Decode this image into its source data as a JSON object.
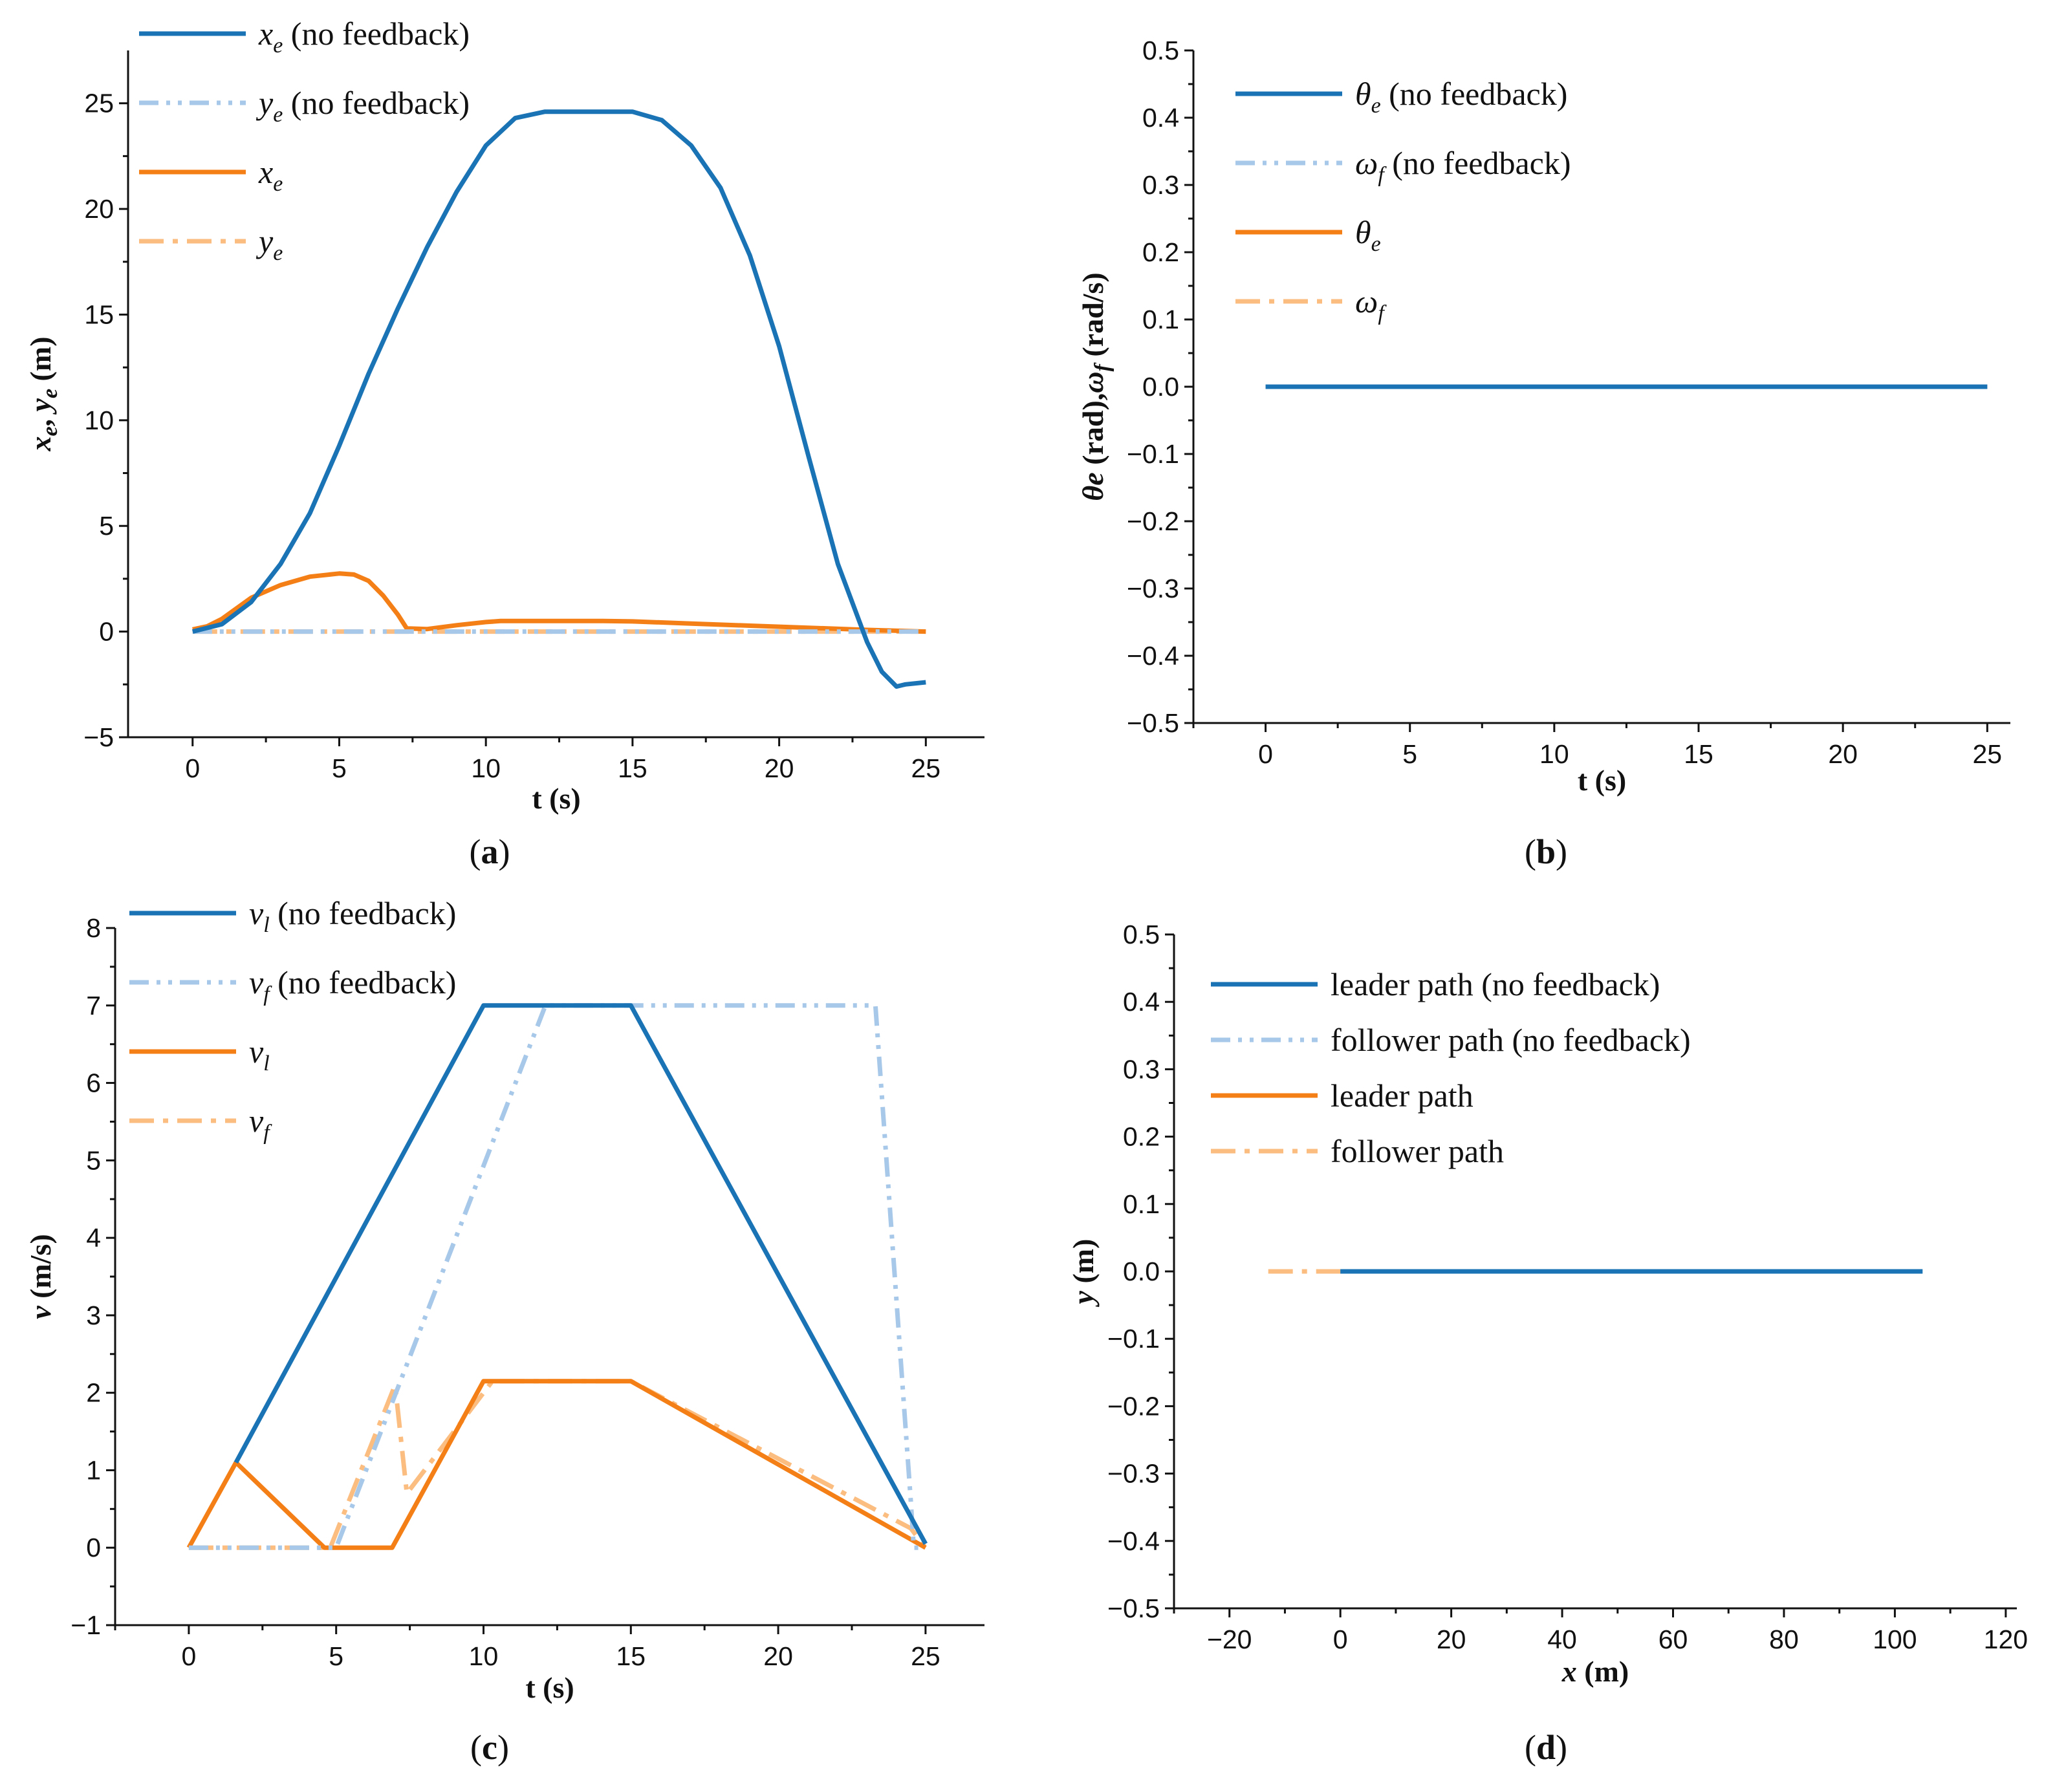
{
  "colors": {
    "dark_blue": "#1a73b4",
    "light_blue": "#a7c8e8",
    "orange": "#f47f17",
    "light_orange": "#fbbd80"
  },
  "chart_data": [
    {
      "id": "a",
      "panel_label": "(a)",
      "type": "line",
      "xlabel": "t (s)",
      "ylabel": "x_e, y_e (m)",
      "xlim": [
        -2.2,
        27
      ],
      "ylim": [
        -5,
        27.5
      ],
      "xticks": [
        0,
        5,
        10,
        15,
        20,
        25
      ],
      "yticks": [
        -5,
        0,
        5,
        10,
        15,
        20,
        25
      ],
      "legend_position": "top-left",
      "series": [
        {
          "name": "x_e (no feedback)",
          "legend_main": "x",
          "legend_sub": "e",
          "legend_rest": " (no feedback)",
          "color": "dark_blue",
          "dash": "solid",
          "x": [
            0,
            1,
            2,
            3,
            4,
            5,
            6,
            7,
            8,
            9,
            10,
            11,
            12,
            13,
            14,
            15,
            16,
            17,
            18,
            19,
            20,
            21,
            22,
            23,
            23.5,
            24,
            24.3,
            25
          ],
          "y": [
            0,
            0.35,
            1.4,
            3.2,
            5.6,
            8.8,
            12.2,
            15.3,
            18.2,
            20.8,
            23.0,
            24.3,
            24.6,
            24.6,
            24.6,
            24.6,
            24.2,
            23.0,
            21.0,
            17.8,
            13.5,
            8.3,
            3.2,
            -0.5,
            -1.9,
            -2.6,
            -2.5,
            -2.4
          ]
        },
        {
          "name": "y_e (no feedback)",
          "legend_main": "y",
          "legend_sub": "e",
          "legend_rest": " (no feedback)",
          "color": "light_blue",
          "dash": "dashdotdot",
          "x": [
            0,
            25
          ],
          "y": [
            0,
            0
          ]
        },
        {
          "name": "x_e",
          "legend_main": "x",
          "legend_sub": "e",
          "legend_rest": "",
          "color": "orange",
          "dash": "solid",
          "x": [
            0,
            0.5,
            1,
            2,
            3,
            4,
            5,
            5.5,
            6,
            6.5,
            7,
            7.3,
            8,
            9,
            10,
            10.5,
            12,
            14,
            15,
            17,
            19,
            21,
            23,
            25
          ],
          "y": [
            0.1,
            0.25,
            0.6,
            1.6,
            2.2,
            2.6,
            2.75,
            2.7,
            2.4,
            1.7,
            0.8,
            0.15,
            0.12,
            0.3,
            0.45,
            0.5,
            0.5,
            0.5,
            0.48,
            0.38,
            0.28,
            0.18,
            0.08,
            0
          ]
        },
        {
          "name": "y_e",
          "legend_main": "y",
          "legend_sub": "e",
          "legend_rest": "",
          "color": "light_orange",
          "dash": "dashdot",
          "x": [
            0,
            25
          ],
          "y": [
            0,
            0
          ]
        }
      ]
    },
    {
      "id": "b",
      "panel_label": "(b)",
      "type": "line",
      "xlabel": "t (s)",
      "ylabel": "θe (rad),ωf (rad/s)",
      "xlim": [
        -2.5,
        25.8
      ],
      "ylim": [
        -0.5,
        0.5
      ],
      "xticks": [
        0,
        5,
        10,
        15,
        20,
        25
      ],
      "yticks": [
        -0.5,
        -0.4,
        -0.3,
        -0.2,
        -0.1,
        0.0,
        0.1,
        0.2,
        0.3,
        0.4,
        0.5
      ],
      "legend_position": "top-left",
      "series": [
        {
          "name": "θ_e (no feedback)",
          "legend_main": "θ",
          "legend_sub": "e",
          "legend_rest": " (no feedback)",
          "color": "dark_blue",
          "dash": "solid",
          "x": [
            0,
            25
          ],
          "y": [
            0,
            0
          ]
        },
        {
          "name": "ω_f (no feedback)",
          "legend_main": "ω",
          "legend_sub": "f",
          "legend_rest": " (no feedback)",
          "color": "light_blue",
          "dash": "dashdotdot",
          "x": [
            0,
            25
          ],
          "y": [
            0,
            0
          ]
        },
        {
          "name": "θ_e",
          "legend_main": "θ",
          "legend_sub": "e",
          "legend_rest": "",
          "color": "orange",
          "dash": "solid",
          "x": [
            0,
            25
          ],
          "y": [
            0,
            0
          ]
        },
        {
          "name": "ω_f",
          "legend_main": "ω",
          "legend_sub": "f",
          "legend_rest": "",
          "color": "light_orange",
          "dash": "dashdot",
          "x": [
            0,
            25
          ],
          "y": [
            0,
            0
          ]
        }
      ]
    },
    {
      "id": "c",
      "panel_label": "(c)",
      "type": "line",
      "xlabel": "t (s)",
      "ylabel": "v (m/s)",
      "xlim": [
        -2.5,
        27
      ],
      "ylim": [
        -1,
        8
      ],
      "xticks": [
        0,
        5,
        10,
        15,
        20,
        25
      ],
      "yticks": [
        -1,
        0,
        1,
        2,
        3,
        4,
        5,
        6,
        7,
        8
      ],
      "legend_position": "top-left",
      "series": [
        {
          "name": "v_l (no feedback)",
          "legend_main": "v",
          "legend_sub": "l",
          "legend_rest": " (no feedback)",
          "color": "dark_blue",
          "dash": "solid",
          "x": [
            1.6,
            10,
            15,
            25
          ],
          "y": [
            1.1,
            7,
            7,
            0.05
          ]
        },
        {
          "name": "v_f (no feedback)",
          "legend_main": "v",
          "legend_sub": "f",
          "legend_rest": " (no feedback)",
          "color": "light_blue",
          "dash": "dashdotdot",
          "x": [
            0,
            5,
            12.1,
            23.3,
            24.5,
            24.6,
            25
          ],
          "y": [
            0,
            0,
            7,
            7,
            0.6,
            0,
            0
          ]
        },
        {
          "name": "v_l",
          "legend_main": "v",
          "legend_sub": "l",
          "legend_rest": "",
          "color": "orange",
          "dash": "solid",
          "x": [
            0,
            1.6,
            4.6,
            6.9,
            10,
            15,
            25
          ],
          "y": [
            0,
            1.1,
            0,
            0,
            2.15,
            2.15,
            0
          ]
        },
        {
          "name": "v_f",
          "legend_main": "v",
          "legend_sub": "f",
          "legend_rest": "",
          "color": "light_orange",
          "dash": "dashdot",
          "x": [
            0,
            4.8,
            7.0,
            7.4,
            10.3,
            15,
            24.5,
            25
          ],
          "y": [
            0,
            0,
            2.1,
            0.7,
            2.15,
            2.15,
            0.25,
            0
          ]
        }
      ]
    },
    {
      "id": "d",
      "panel_label": "(d)",
      "type": "line",
      "xlabel": "x (m)",
      "ylabel": "y (m)",
      "xlim": [
        -30,
        122
      ],
      "ylim": [
        -0.5,
        0.5
      ],
      "xticks": [
        -20,
        0,
        20,
        40,
        60,
        80,
        100,
        120
      ],
      "yticks": [
        -0.5,
        -0.4,
        -0.3,
        -0.2,
        -0.1,
        0.0,
        0.1,
        0.2,
        0.3,
        0.4,
        0.5
      ],
      "legend_position": "top-left",
      "series": [
        {
          "name": "leader path (no feedback)",
          "legend_main": "leader path (no feedback)",
          "legend_sub": "",
          "legend_rest": "",
          "color": "dark_blue",
          "dash": "solid",
          "x": [
            0,
            105
          ],
          "y": [
            0,
            0
          ]
        },
        {
          "name": "follower path (no feedback)",
          "legend_main": "follower path (no feedback)",
          "legend_sub": "",
          "legend_rest": "",
          "color": "light_blue",
          "dash": "dashdotdot",
          "x": [
            0,
            92
          ],
          "y": [
            0,
            0
          ]
        },
        {
          "name": "leader path",
          "legend_main": "leader path",
          "legend_sub": "",
          "legend_rest": "",
          "color": "orange",
          "dash": "solid",
          "x": [
            0,
            28
          ],
          "y": [
            0,
            0
          ]
        },
        {
          "name": "follower path",
          "legend_main": "follower path",
          "legend_sub": "",
          "legend_rest": "",
          "color": "light_orange",
          "dash": "dashdot",
          "x": [
            -13,
            22
          ],
          "y": [
            0,
            0
          ]
        }
      ]
    }
  ]
}
